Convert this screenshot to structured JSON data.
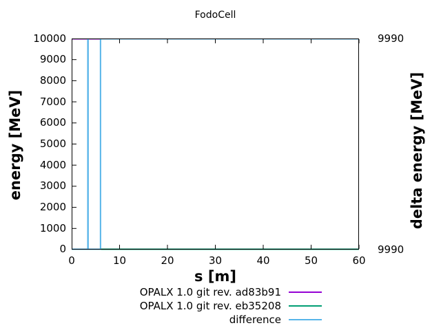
{
  "title": "FodoCell",
  "axes": {
    "y2": {
      "top_label": "9990",
      "bottom_label": "9990"
    }
  },
  "chart_data": {
    "type": "line",
    "title": "FodoCell",
    "xlabel": "s [m]",
    "ylabel": "energy [MeV]",
    "y2label": "delta energy [MeV]",
    "xlim": [
      0,
      60
    ],
    "ylim": [
      0,
      10000
    ],
    "xticks": [
      0,
      10,
      20,
      30,
      40,
      50,
      60
    ],
    "yticks": [
      0,
      1000,
      2000,
      3000,
      4000,
      5000,
      6000,
      7000,
      8000,
      9000,
      10000
    ],
    "y2tick_labels": [
      "9990",
      "9990"
    ],
    "grid": false,
    "legend_position": "below-plot-right",
    "series": [
      {
        "name": "OPALX 1.0 git rev. ad83b91",
        "color": "#9400d3",
        "axis": "y1",
        "x": [
          0,
          60
        ],
        "y": [
          10000,
          10000
        ]
      },
      {
        "name": "OPALX 1.0 git rev. eb35208",
        "color": "#009e73",
        "axis": "y1",
        "x": [
          0,
          60
        ],
        "y": [
          0,
          0
        ]
      },
      {
        "name": "difference",
        "color": "#56b4e9",
        "axis": "y2",
        "y_units": "normalized: 0 = axis bottom (9990), 1 = axis top (9990)",
        "x": [
          0,
          3.38,
          3.38,
          3.43,
          3.43,
          6.02,
          6.02,
          60
        ],
        "y": [
          0,
          0,
          1,
          1,
          0,
          0,
          1,
          1
        ]
      }
    ]
  }
}
